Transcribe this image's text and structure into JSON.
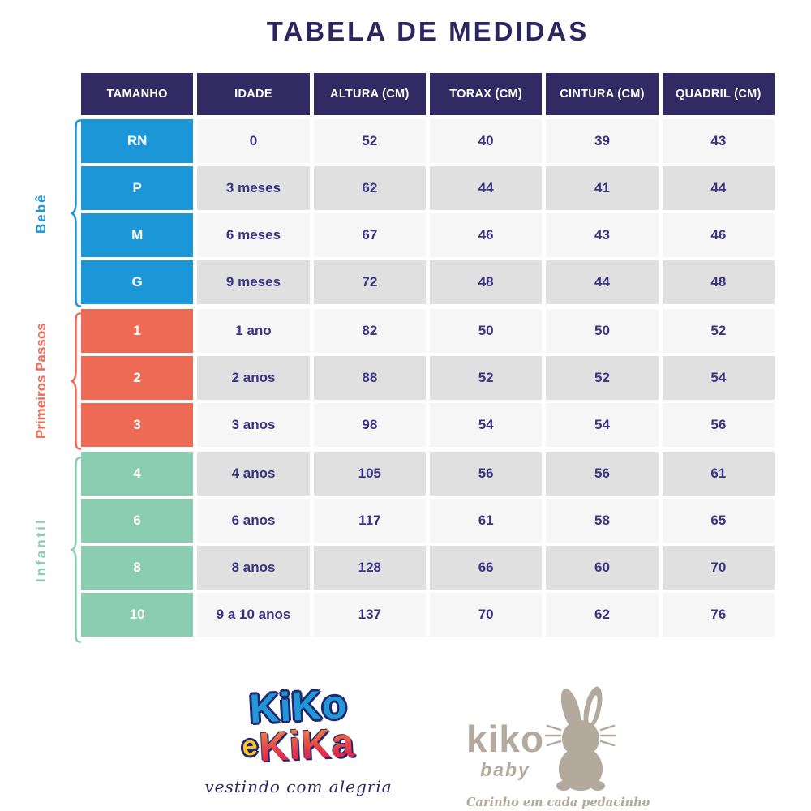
{
  "title": "TABELA DE MEDIDAS",
  "chart_data": {
    "type": "table",
    "title": "TABELA DE MEDIDAS",
    "columns": [
      "TAMANHO",
      "IDADE",
      "ALTURA (CM)",
      "TORAX (CM)",
      "CINTURA (CM)",
      "QUADRIL (CM)"
    ],
    "groups": [
      {
        "label": "Bebê",
        "color": "#1b97d8",
        "rows": [
          [
            "RN",
            "0",
            "52",
            "40",
            "39",
            "43"
          ],
          [
            "P",
            "3 meses",
            "62",
            "44",
            "41",
            "44"
          ],
          [
            "M",
            "6 meses",
            "67",
            "46",
            "43",
            "46"
          ],
          [
            "G",
            "9 meses",
            "72",
            "48",
            "44",
            "48"
          ]
        ]
      },
      {
        "label": "Primeiros Passos",
        "color": "#ee6a55",
        "rows": [
          [
            "1",
            "1 ano",
            "82",
            "50",
            "50",
            "52"
          ],
          [
            "2",
            "2 anos",
            "88",
            "52",
            "52",
            "54"
          ],
          [
            "3",
            "3 anos",
            "98",
            "54",
            "54",
            "56"
          ]
        ]
      },
      {
        "label": "Infantil",
        "color": "#8bcdb0",
        "rows": [
          [
            "4",
            "4 anos",
            "105",
            "56",
            "56",
            "61"
          ],
          [
            "6",
            "6 anos",
            "117",
            "61",
            "58",
            "65"
          ],
          [
            "8",
            "8 anos",
            "128",
            "66",
            "60",
            "70"
          ],
          [
            "10",
            "9 a 10 anos",
            "137",
            "70",
            "62",
            "76"
          ]
        ]
      }
    ]
  },
  "footer": {
    "kiko_e_kika": {
      "word1": "KiKo",
      "word2_e": "e",
      "word2": "KiKa",
      "tagline": "vestindo com alegria"
    },
    "kiko_baby": {
      "name": "kiko",
      "sub": "baby",
      "tagline": "Carinho em cada pedacinho"
    }
  },
  "colors": {
    "header_bg": "#312a63",
    "row_light": "#f6f6f6",
    "row_dark": "#e0e0e0",
    "cell_text": "#3b3383",
    "title_text": "#2b2661",
    "bebe": "#1b97d8",
    "primeiros_passos": "#ee6a55",
    "infantil": "#8bcdb0",
    "logo_blue": "#2196d8",
    "logo_yellow": "#ffc32e",
    "logo_orange": "#f5913d",
    "logo_red": "#e5274d",
    "logo_navy": "#1e2a6b",
    "logo_taupe": "#b3a99c"
  }
}
